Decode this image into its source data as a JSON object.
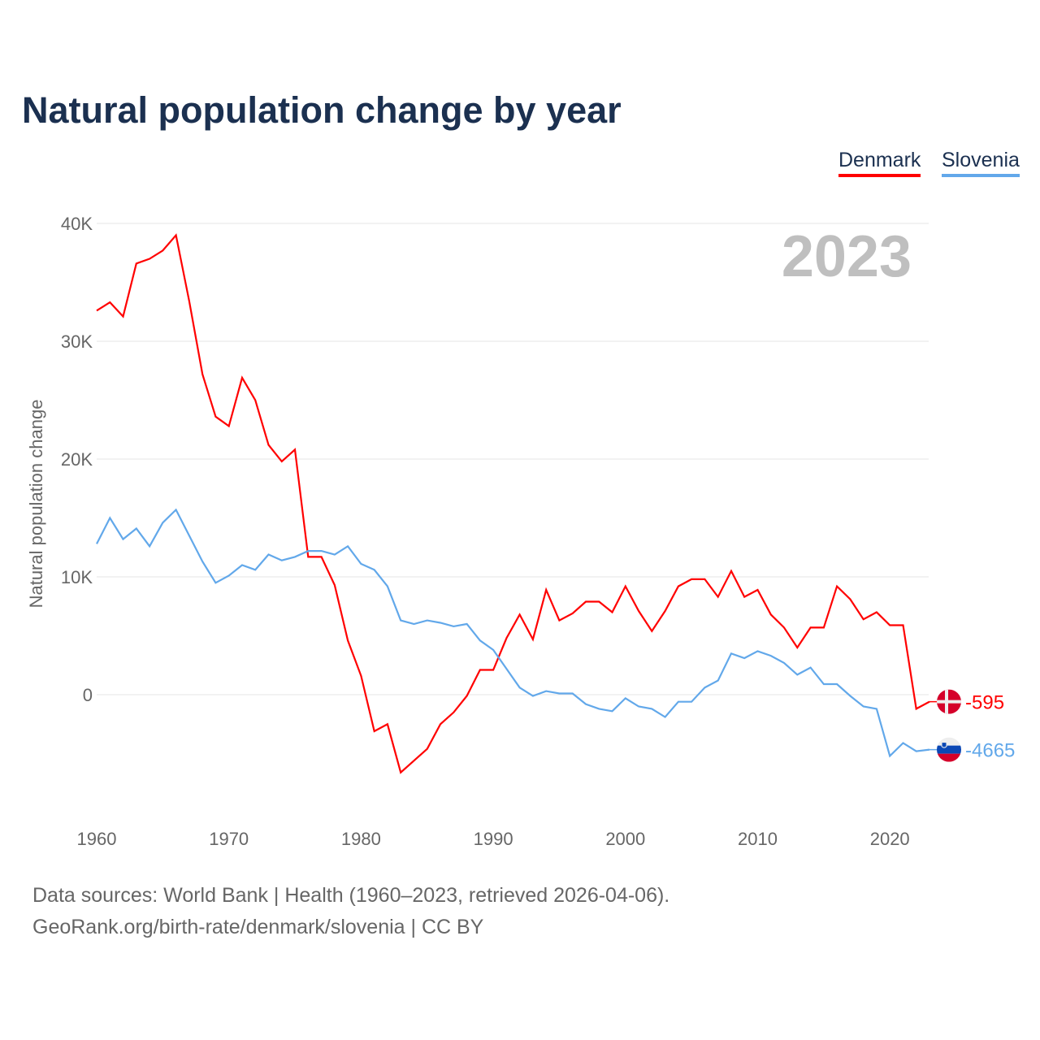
{
  "chart_data": {
    "type": "line",
    "title": "Natural population change by year",
    "ylabel": "Natural population change",
    "xlabel": "",
    "year_label": "2023",
    "ylim": [
      -10000,
      40000
    ],
    "xlim": [
      1960,
      2023
    ],
    "yticks": [
      {
        "v": 0,
        "label": "0"
      },
      {
        "v": 10000,
        "label": "10K"
      },
      {
        "v": 20000,
        "label": "20K"
      },
      {
        "v": 30000,
        "label": "30K"
      },
      {
        "v": 40000,
        "label": "40K"
      }
    ],
    "xticks": [
      1960,
      1970,
      1980,
      1990,
      2000,
      2010,
      2020
    ],
    "grid": true,
    "legend_position": "top-right",
    "x_start": 1960,
    "series": [
      {
        "name": "Denmark",
        "color": "#ff0000",
        "end_label": "-595",
        "values": [
          32600,
          33300,
          32100,
          36600,
          37000,
          37700,
          39000,
          33400,
          27200,
          23600,
          22800,
          26900,
          25000,
          21200,
          19800,
          20800,
          11700,
          11700,
          9300,
          4600,
          1600,
          -3100,
          -2500,
          -6600,
          -5600,
          -4600,
          -2500,
          -1500,
          -100,
          2100,
          2100,
          4800,
          6800,
          4700,
          8900,
          6300,
          6900,
          7900,
          7900,
          7000,
          9200,
          7100,
          5400,
          7100,
          9200,
          9800,
          9800,
          8300,
          10500,
          8300,
          8900,
          6800,
          5700,
          4000,
          5700,
          5700,
          9200,
          8100,
          6400,
          7000,
          5900,
          5900,
          -1200,
          -595
        ]
      },
      {
        "name": "Slovenia",
        "color": "#62a8ea",
        "end_label": "-4665",
        "values": [
          12800,
          15000,
          13200,
          14100,
          12600,
          14600,
          15700,
          13500,
          11300,
          9500,
          10100,
          11000,
          10600,
          11900,
          11400,
          11700,
          12200,
          12200,
          11900,
          12600,
          11100,
          10600,
          9200,
          6300,
          6000,
          6300,
          6100,
          5800,
          6000,
          4600,
          3800,
          2200,
          600,
          -100,
          300,
          100,
          100,
          -800,
          -1200,
          -1400,
          -300,
          -1000,
          -1200,
          -1900,
          -600,
          -600,
          600,
          1200,
          3500,
          3100,
          3700,
          3300,
          2700,
          1700,
          2300,
          900,
          900,
          -100,
          -1000,
          -1200,
          -5200,
          -4100,
          -4800,
          -4665
        ]
      }
    ]
  },
  "footer": {
    "line1": "Data sources: World Bank | Health (1960–2023, retrieved 2026-04-06).",
    "line2": "GeoRank.org/birth-rate/denmark/slovenia | CC BY"
  }
}
